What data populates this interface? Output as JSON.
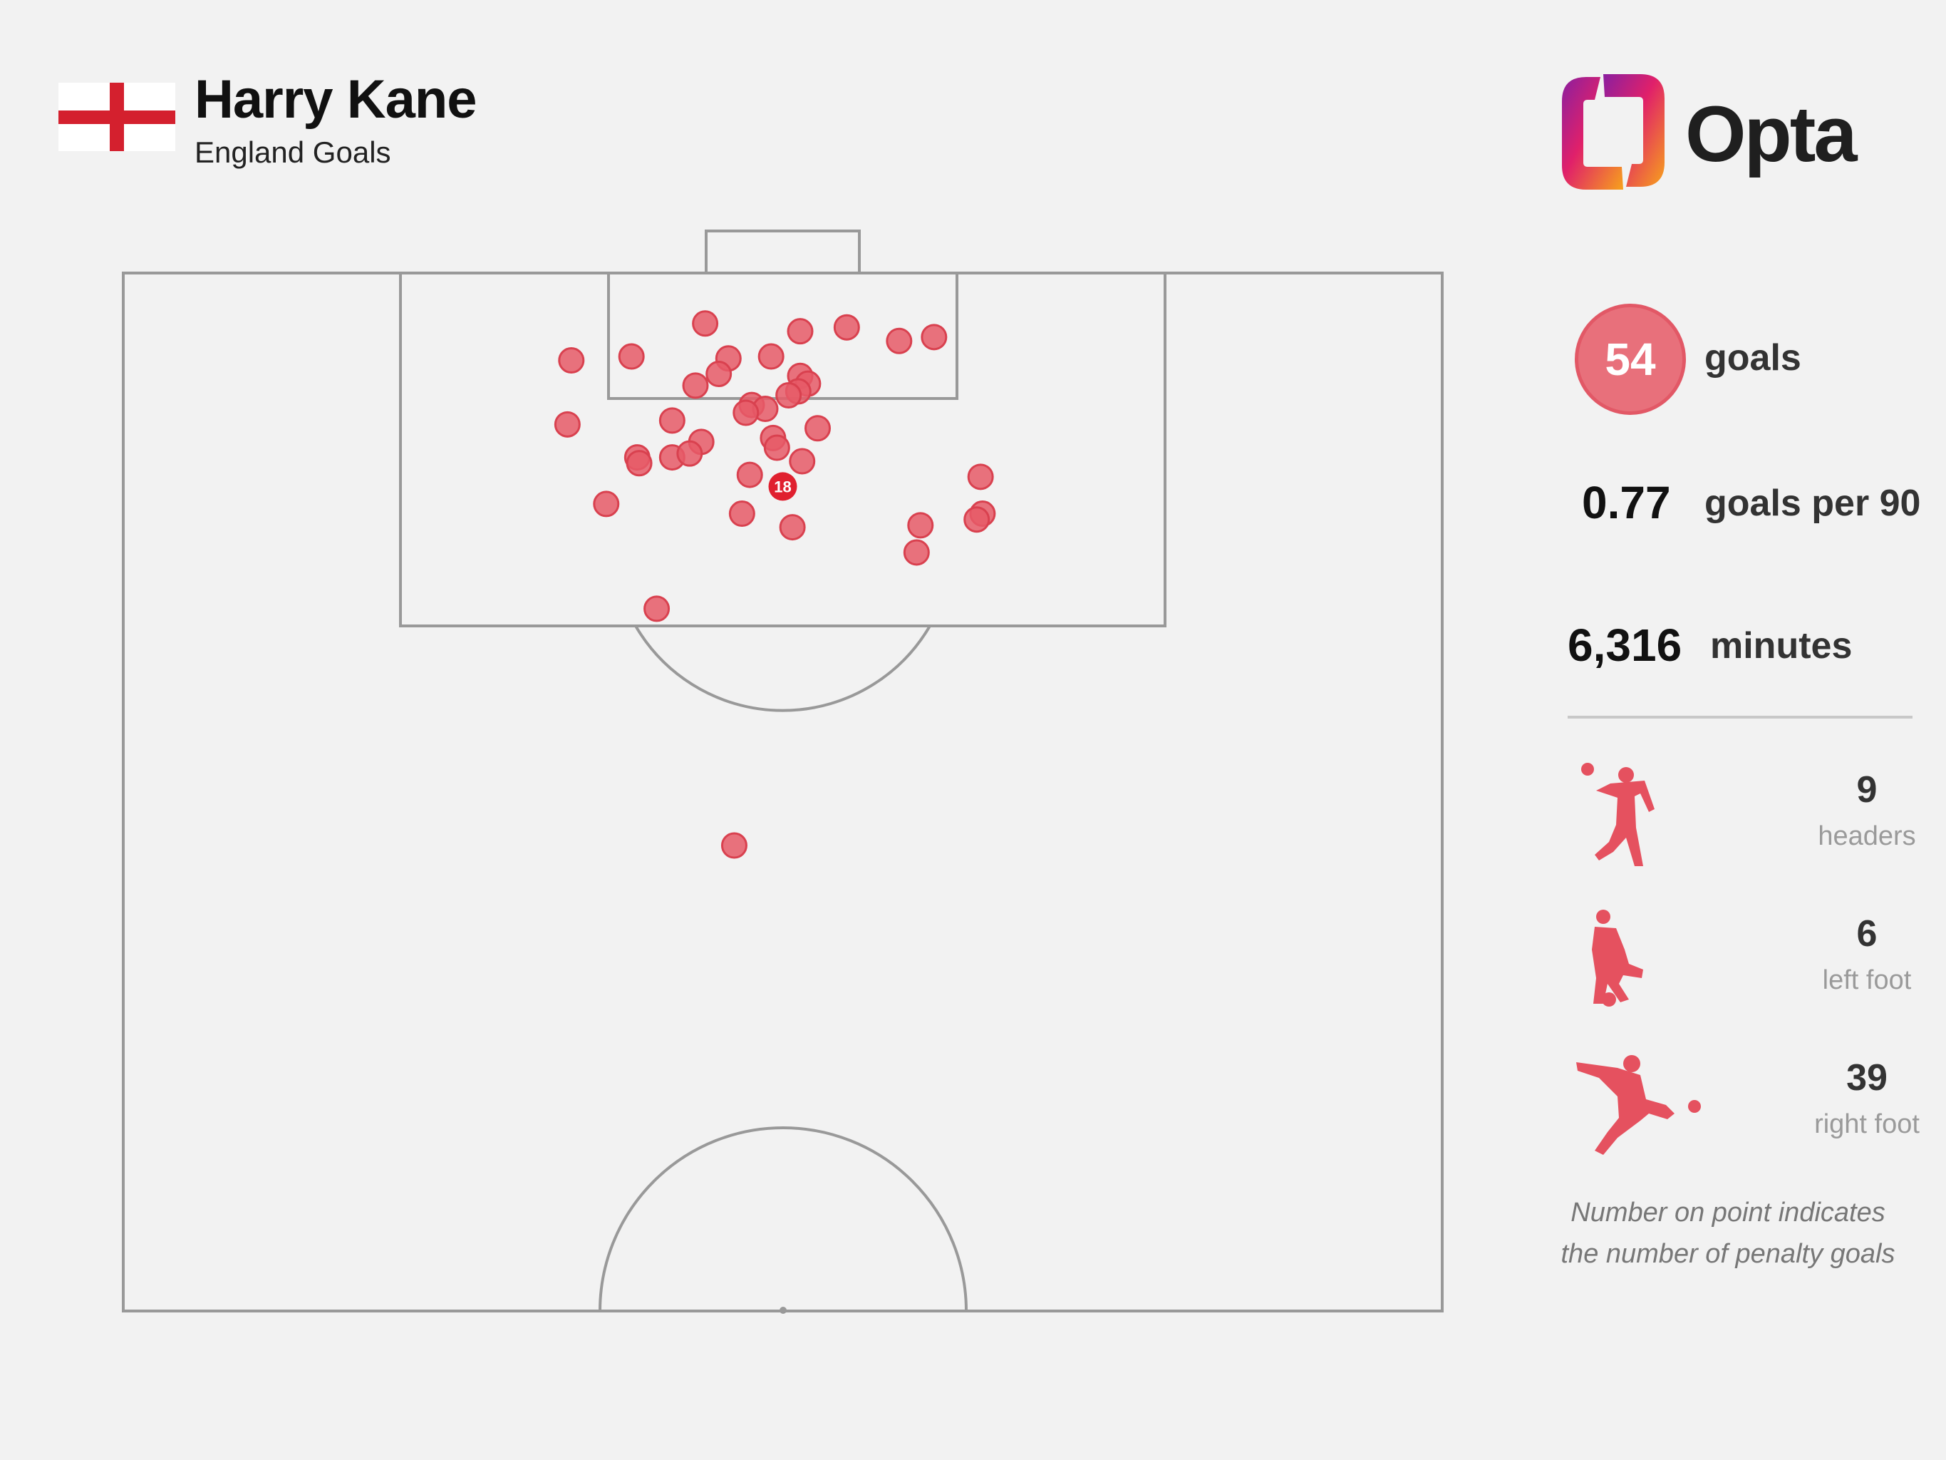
{
  "header": {
    "player_name": "Harry Kane",
    "subtitle": "England Goals",
    "brand": "Opta"
  },
  "stats": {
    "total_goals": "54",
    "goals_label": "goals",
    "goals_per_90": "0.77",
    "goals_per_90_label": "goals per 90",
    "minutes": "6,316",
    "minutes_label": "minutes"
  },
  "goal_types": [
    {
      "count": "9",
      "label": "headers",
      "icon": "header-player-icon"
    },
    {
      "count": "6",
      "label": "left foot",
      "icon": "left-foot-player-icon"
    },
    {
      "count": "39",
      "label": "right foot",
      "icon": "right-foot-player-icon"
    }
  ],
  "footnote": [
    "Number on point indicates",
    "the number of penalty goals"
  ],
  "colors": {
    "dot": "#e65b67",
    "penalty_dot": "#e0202f",
    "pitch_line": "#999999",
    "background": "#f2f2f2",
    "flag_red": "#d4202e"
  },
  "chart_data": {
    "type": "scatter",
    "description_units": "pitch coordinates in metres: x = lateral position across pitch width (0-68, goal centre at 34), y = distance from goal line",
    "xlim": [
      0,
      68
    ],
    "ylim": [
      0,
      52.5
    ],
    "points": [
      {
        "x": 30.0,
        "y": 2.6
      },
      {
        "x": 34.9,
        "y": 3.0
      },
      {
        "x": 37.3,
        "y": 2.8
      },
      {
        "x": 40.0,
        "y": 3.5
      },
      {
        "x": 41.8,
        "y": 3.3
      },
      {
        "x": 26.2,
        "y": 4.3
      },
      {
        "x": 31.2,
        "y": 4.4
      },
      {
        "x": 33.4,
        "y": 4.3
      },
      {
        "x": 23.1,
        "y": 4.5
      },
      {
        "x": 30.7,
        "y": 5.2
      },
      {
        "x": 34.9,
        "y": 5.3
      },
      {
        "x": 29.5,
        "y": 5.8
      },
      {
        "x": 35.3,
        "y": 5.7
      },
      {
        "x": 34.8,
        "y": 6.1
      },
      {
        "x": 34.3,
        "y": 6.3
      },
      {
        "x": 32.4,
        "y": 6.8
      },
      {
        "x": 33.1,
        "y": 7.0
      },
      {
        "x": 32.1,
        "y": 7.2
      },
      {
        "x": 28.3,
        "y": 7.6
      },
      {
        "x": 22.9,
        "y": 7.8
      },
      {
        "x": 35.8,
        "y": 8.0
      },
      {
        "x": 33.5,
        "y": 8.5
      },
      {
        "x": 29.8,
        "y": 8.7
      },
      {
        "x": 33.7,
        "y": 9.0
      },
      {
        "x": 28.3,
        "y": 9.5
      },
      {
        "x": 26.5,
        "y": 9.5
      },
      {
        "x": 26.6,
        "y": 9.8
      },
      {
        "x": 29.2,
        "y": 9.3
      },
      {
        "x": 35.0,
        "y": 9.7
      },
      {
        "x": 32.3,
        "y": 10.4
      },
      {
        "x": 44.2,
        "y": 10.5
      },
      {
        "x": 24.9,
        "y": 11.9
      },
      {
        "x": 31.9,
        "y": 12.4
      },
      {
        "x": 44.3,
        "y": 12.4
      },
      {
        "x": 44.0,
        "y": 12.7
      },
      {
        "x": 41.1,
        "y": 13.0
      },
      {
        "x": 34.5,
        "y": 13.1
      },
      {
        "x": 40.9,
        "y": 14.4
      },
      {
        "x": 27.5,
        "y": 17.3
      },
      {
        "x": 31.5,
        "y": 29.5
      }
    ],
    "penalty_point": {
      "x": 34.0,
      "y": 11.0,
      "label": "18"
    }
  }
}
